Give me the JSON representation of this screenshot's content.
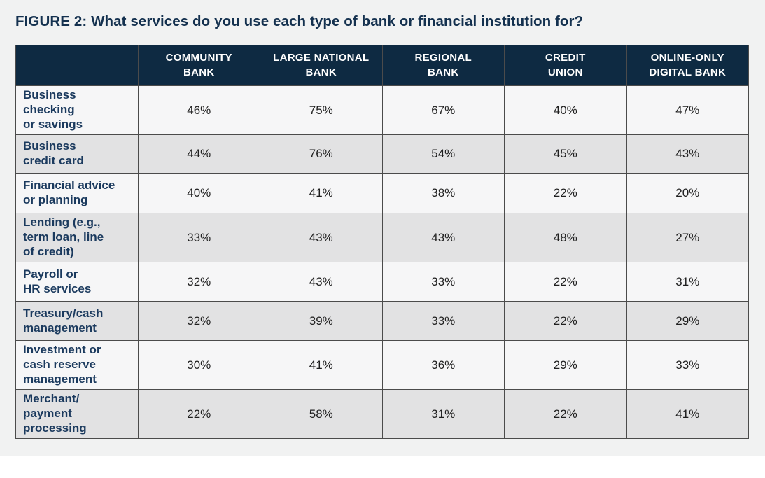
{
  "title": "FIGURE 2: What services do you use each type of bank or financial institution for?",
  "colors": {
    "header_bg": "#0e2a42",
    "header_text": "#ffffff",
    "title_text": "#14314f",
    "row_label_text": "#1b3a5e",
    "row_light_bg": "#f6f6f7",
    "row_shade_bg": "#e2e2e3",
    "grid_border": "#4b4b4b",
    "page_bg": "#f1f2f2"
  },
  "table": {
    "columns": [
      "COMMUNITY\nBANK",
      "LARGE NATIONAL\nBANK",
      "REGIONAL\nBANK",
      "CREDIT\nUNION",
      "ONLINE-ONLY\nDIGITAL BANK"
    ],
    "rows": [
      {
        "label": "Business\nchecking\nor savings",
        "values": [
          "46%",
          "75%",
          "67%",
          "40%",
          "47%"
        ]
      },
      {
        "label": "Business\ncredit card",
        "values": [
          "44%",
          "76%",
          "54%",
          "45%",
          "43%"
        ]
      },
      {
        "label": "Financial advice\nor planning",
        "values": [
          "40%",
          "41%",
          "38%",
          "22%",
          "20%"
        ]
      },
      {
        "label": "Lending (e.g.,\nterm loan, line\nof credit)",
        "values": [
          "33%",
          "43%",
          "43%",
          "48%",
          "27%"
        ]
      },
      {
        "label": "Payroll or\nHR services",
        "values": [
          "32%",
          "43%",
          "33%",
          "22%",
          "31%"
        ]
      },
      {
        "label": "Treasury/cash\nmanagement",
        "values": [
          "32%",
          "39%",
          "33%",
          "22%",
          "29%"
        ]
      },
      {
        "label": "Investment or\ncash reserve\nmanagement",
        "values": [
          "30%",
          "41%",
          "36%",
          "29%",
          "33%"
        ]
      },
      {
        "label": "Merchant/\npayment\nprocessing",
        "values": [
          "22%",
          "58%",
          "31%",
          "22%",
          "41%"
        ]
      }
    ]
  },
  "chart_data": {
    "type": "table",
    "title": "FIGURE 2: What services do you use each type of bank or financial institution for?",
    "columns": [
      "Community Bank",
      "Large National Bank",
      "Regional Bank",
      "Credit Union",
      "Online-Only Digital Bank"
    ],
    "row_categories": [
      "Business checking or savings",
      "Business credit card",
      "Financial advice or planning",
      "Lending (e.g., term loan, line of credit)",
      "Payroll or HR services",
      "Treasury/cash management",
      "Investment or cash reserve management",
      "Merchant/payment processing"
    ],
    "values_percent": [
      [
        46,
        75,
        67,
        40,
        47
      ],
      [
        44,
        76,
        54,
        45,
        43
      ],
      [
        40,
        41,
        38,
        22,
        20
      ],
      [
        33,
        43,
        43,
        48,
        27
      ],
      [
        32,
        43,
        33,
        22,
        31
      ],
      [
        32,
        39,
        33,
        22,
        29
      ],
      [
        30,
        41,
        36,
        29,
        33
      ],
      [
        22,
        58,
        31,
        22,
        41
      ]
    ],
    "unit": "%"
  }
}
